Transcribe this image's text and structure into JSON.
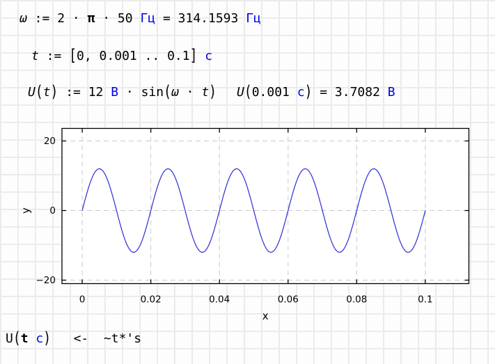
{
  "worksheet": {
    "line_omega": {
      "lhs": "ω",
      "assign": " := ",
      "factor": "2 · ",
      "pi": "π",
      "rest": " · 50 ",
      "unit": "Гц",
      "eq": " = ",
      "value": "314.1593 ",
      "value_unit": "Гц"
    },
    "line_t": {
      "lhs": "t",
      "assign": " := ",
      "open": "[",
      "range": "0, 0.001 .. 0.1",
      "close": "]",
      "unit": " с"
    },
    "line_u_def": {
      "lhs": "U",
      "open": "(",
      "arg": "t",
      "close": ")",
      "assign": " := 12 ",
      "unit": "В",
      "mul_sin": " · sin",
      "open2": "(",
      "omega": "ω",
      "dot": " · ",
      "t": "t",
      "close2": ")"
    },
    "line_u_eval": {
      "lhs": "U",
      "open": "(",
      "arg": "0.001 ",
      "arg_unit": "с",
      "close": ")",
      "eq": " = 3.7082 ",
      "unit": "В"
    },
    "line_plot_expr": {
      "fn": "U",
      "open": "(",
      "arg": "t",
      "space": " ",
      "unit": "с",
      "close": ")",
      "typed": "   <-  ~t*'s"
    }
  },
  "chart_data": {
    "type": "line",
    "title": "",
    "xlabel": "x",
    "ylabel": "y",
    "xlim": [
      -0.0059,
      0.1127
    ],
    "ylim": [
      -21.0,
      23.6
    ],
    "x_ticks": [
      0,
      0.02,
      0.04,
      0.06,
      0.08,
      0.1
    ],
    "x_tick_labels": [
      "0",
      "0.02",
      "0.04",
      "0.06",
      "0.08",
      "0.1"
    ],
    "y_ticks": [
      -20,
      0,
      20
    ],
    "y_tick_labels": [
      "−20",
      "0",
      "20"
    ],
    "grid": true,
    "grid_style": "dashed",
    "legend": false,
    "series": [
      {
        "name": "U(t) = 12·sin(2·π·50·t)",
        "amplitude": 12,
        "frequency_hz": 50,
        "t_start": 0,
        "t_end": 0.1,
        "color": "#3a3ad9"
      }
    ]
  },
  "colors": {
    "unit_blue": "#0000ee",
    "curve_blue": "#3a3ad9",
    "axis_black": "#000000",
    "gridline_gray": "#c9c9c9",
    "axes_background": "#ffffff"
  }
}
